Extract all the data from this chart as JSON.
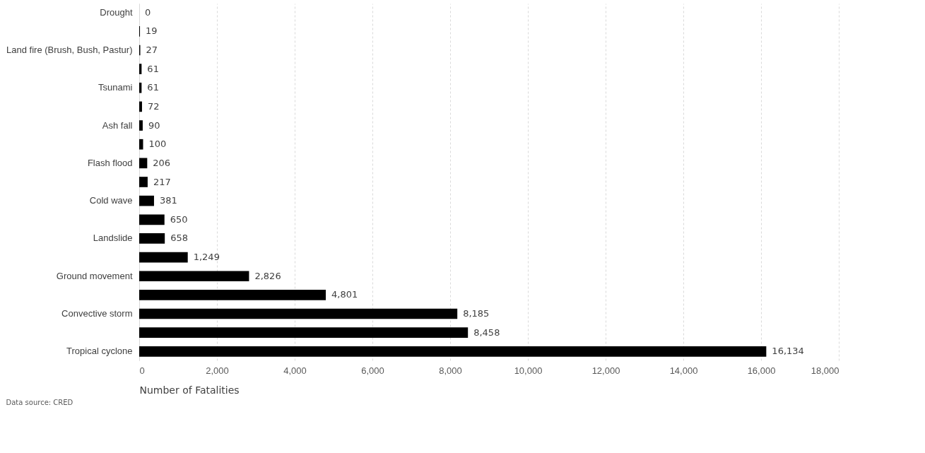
{
  "chart_data": {
    "type": "bar",
    "orientation": "horizontal",
    "xlabel": "Number of Fatalities",
    "annotations": [
      "Data source: CRED"
    ],
    "categories": [
      "Drought",
      null,
      "Land fire (Brush, Bush, Pastur)",
      null,
      "Tsunami",
      null,
      "Ash fall",
      null,
      "Flash flood",
      null,
      "Cold wave",
      null,
      "Landslide",
      null,
      "Ground movement",
      null,
      "Convective storm",
      null,
      "Tropical cyclone"
    ],
    "values": [
      0,
      19,
      27,
      61,
      61,
      72,
      90,
      100,
      206,
      217,
      381,
      650,
      658,
      1249,
      2826,
      4801,
      8185,
      8458,
      16134
    ],
    "value_labels": [
      "0",
      "19",
      "27",
      "61",
      "61",
      "72",
      "90",
      "100",
      "206",
      "217",
      "381",
      "650",
      "658",
      "1,249",
      "2,826",
      "4,801",
      "8,185",
      "8,458",
      "16,134"
    ],
    "color": "#000000",
    "xlim": [
      0,
      18000
    ],
    "xticks": [
      0,
      {
        "value": 2000,
        "label": "2,000"
      },
      {
        "value": 4000,
        "label": "4,000"
      },
      {
        "value": 6000,
        "label": "6,000"
      },
      {
        "value": 8000,
        "label": "8,000"
      },
      {
        "value": 10000,
        "label": "10,000"
      },
      {
        "value": 12000,
        "label": "12,000"
      },
      {
        "value": 14000,
        "label": "14,000"
      },
      {
        "value": 16000,
        "label": "16,000"
      },
      {
        "value": 18000,
        "label": "18,000"
      }
    ],
    "grid": "x"
  }
}
